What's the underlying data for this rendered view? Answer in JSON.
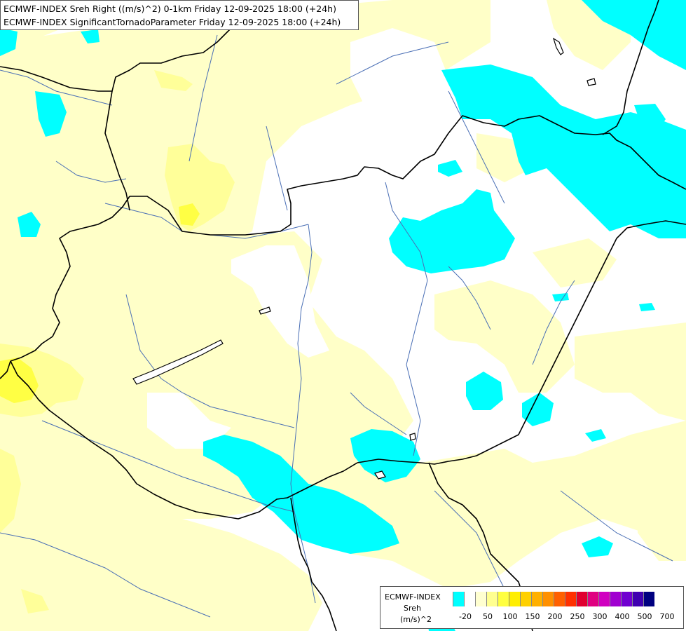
{
  "title": {
    "line1": "ECMWF-INDEX Sreh Right ((m/s)^2) 0-1km Friday 12-09-2025 18:00 (+24h)",
    "line2": "ECMWF-INDEX SignificantTornadoParameter Friday 12-09-2025 18:00 (+24h)"
  },
  "legend": {
    "source": "ECMWF-INDEX",
    "parameter": "Sreh",
    "unit": "(m/s)^2",
    "colors": [
      "#00ffff",
      "#ffffff",
      "#ffffd0",
      "#ffff90",
      "#ffff40",
      "#ffee00",
      "#ffd000",
      "#ffb000",
      "#ff9000",
      "#ff6000",
      "#ff3000",
      "#e00030",
      "#e00080",
      "#d000c0",
      "#a000d0",
      "#7000d0",
      "#4000b0",
      "#000080"
    ],
    "labels": [
      "-20",
      "50",
      "100",
      "150",
      "200",
      "250",
      "300",
      "400",
      "500",
      "700"
    ]
  },
  "palette": {
    "cyan": "#00ffff",
    "pale_yellow": "#ffffc8",
    "light_yellow": "#ffff99",
    "yellow": "#ffff44",
    "border": "#000000",
    "river": "#4a6fb5"
  }
}
